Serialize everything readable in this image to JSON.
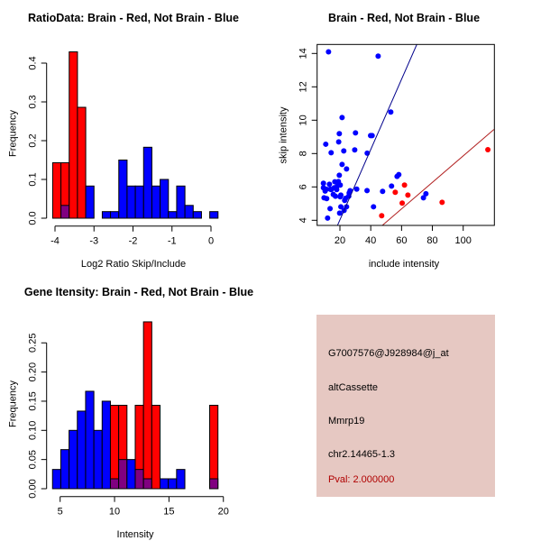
{
  "chart_data": [
    {
      "id": "ratio",
      "type": "bar",
      "title": "RatioData: Brain - Red, Not Brain - Blue",
      "xlabel": "Log2 Ratio Skip/Include",
      "ylabel": "Frequency",
      "xlim": [
        -4.1,
        0.3
      ],
      "ylim": [
        0,
        0.43
      ],
      "xticks": [
        -4,
        -3,
        -2,
        -1,
        0
      ],
      "xtick_labels": [
        "-4",
        "-3",
        "-2",
        "-1",
        "0"
      ],
      "yticks": [
        0,
        0.1,
        0.2,
        0.3,
        0.4
      ],
      "ytick_labels": [
        "0.0",
        "0.1",
        "0.2",
        "0.3",
        "0.4"
      ],
      "bin_start": -4.06,
      "bin_width": 0.212,
      "series": [
        {
          "name": "Not Brain",
          "color": "#0000ff",
          "values": [
            0,
            0.033,
            0,
            0,
            0.083,
            0,
            0.017,
            0.017,
            0.15,
            0.083,
            0.083,
            0.183,
            0.083,
            0.1,
            0.017,
            0.083,
            0.033,
            0.017,
            0,
            0.017
          ]
        },
        {
          "name": "Brain",
          "color": "#ff0000",
          "values": [
            0.143,
            0.143,
            0.429,
            0.286,
            0,
            0,
            0,
            0,
            0,
            0,
            0,
            0,
            0,
            0,
            0,
            0,
            0,
            0,
            0,
            0
          ]
        }
      ],
      "overlap_color": "#800080"
    },
    {
      "id": "scatter",
      "type": "scatter",
      "title": "Brain - Red, Not Brain - Blue",
      "xlabel": "include intensity",
      "ylabel": "skip intensity",
      "xlim": [
        5,
        120
      ],
      "ylim": [
        3.69,
        14.54
      ],
      "xticks": [
        20,
        40,
        60,
        80,
        100
      ],
      "xtick_labels": [
        "20",
        "40",
        "60",
        "80",
        "100"
      ],
      "yticks": [
        4,
        6,
        8,
        10,
        12,
        14
      ],
      "ytick_labels": [
        "4",
        "6",
        "8",
        "10",
        "12",
        "14"
      ],
      "series": [
        {
          "name": "Not Brain",
          "color": "#0000ff",
          "fit": {
            "slope": 0.2107,
            "intercept": -0.187,
            "color": "#00008b"
          },
          "points": [
            [
              12.6,
              14.1
            ],
            [
              44.8,
              13.84
            ],
            [
              53.0,
              10.49
            ],
            [
              21.4,
              10.16
            ],
            [
              19.6,
              9.19
            ],
            [
              30.1,
              9.24
            ],
            [
              39.9,
              9.08
            ],
            [
              40.9,
              9.08
            ],
            [
              10.8,
              8.56
            ],
            [
              19.2,
              8.7
            ],
            [
              14.3,
              8.05
            ],
            [
              22.5,
              8.16
            ],
            [
              29.6,
              8.22
            ],
            [
              37.7,
              8.02
            ],
            [
              21.4,
              7.35
            ],
            [
              24.3,
              7.08
            ],
            [
              19.6,
              6.7
            ],
            [
              57.1,
              6.63
            ],
            [
              58.2,
              6.74
            ],
            [
              9.3,
              6.22
            ],
            [
              13.2,
              6.16
            ],
            [
              16.7,
              6.31
            ],
            [
              19.0,
              6.32
            ],
            [
              20.2,
              6.11
            ],
            [
              9.3,
              5.95
            ],
            [
              11.2,
              5.86
            ],
            [
              13.8,
              5.86
            ],
            [
              16.3,
              5.95
            ],
            [
              18.2,
              6.04
            ],
            [
              53.5,
              6.05
            ],
            [
              10.4,
              5.75
            ],
            [
              14.3,
              5.84
            ],
            [
              17.9,
              5.84
            ],
            [
              26.6,
              5.77
            ],
            [
              30.9,
              5.87
            ],
            [
              37.6,
              5.78
            ],
            [
              47.7,
              5.73
            ],
            [
              9.7,
              5.35
            ],
            [
              11.4,
              5.3
            ],
            [
              15.7,
              5.55
            ],
            [
              17.1,
              5.44
            ],
            [
              20.6,
              5.51
            ],
            [
              20.2,
              5.41
            ],
            [
              26.0,
              5.64
            ],
            [
              23.7,
              5.32
            ],
            [
              23.1,
              5.19
            ],
            [
              25.7,
              5.44
            ],
            [
              75.8,
              5.59
            ],
            [
              74.2,
              5.35
            ],
            [
              13.6,
              4.7
            ],
            [
              20.6,
              4.81
            ],
            [
              24.3,
              4.81
            ],
            [
              41.8,
              4.81
            ],
            [
              22.7,
              4.59
            ],
            [
              19.8,
              4.43
            ],
            [
              12.0,
              4.13
            ]
          ]
        },
        {
          "name": "Brain",
          "color": "#ff0000",
          "fit": {
            "slope": 0.0794,
            "intercept": -0.08,
            "color": "#b22222"
          },
          "points": [
            [
              116.0,
              8.23
            ],
            [
              61.9,
              6.11
            ],
            [
              55.9,
              5.68
            ],
            [
              64.1,
              5.51
            ],
            [
              60.4,
              5.03
            ],
            [
              86.3,
              5.08
            ],
            [
              47.1,
              4.27
            ]
          ]
        }
      ]
    },
    {
      "id": "intensity",
      "type": "bar",
      "title": "Gene Itensity: Brain - Red, Not Brain - Blue",
      "xlabel": "Intensity",
      "ylabel": "Frequency",
      "xlim": [
        4,
        20.5
      ],
      "ylim": [
        0,
        0.29
      ],
      "xticks": [
        5,
        10,
        15,
        20
      ],
      "xtick_labels": [
        "5",
        "10",
        "15",
        "20"
      ],
      "yticks": [
        0,
        0.05,
        0.1,
        0.15,
        0.2,
        0.25
      ],
      "ytick_labels": [
        "0.00",
        "0.05",
        "0.10",
        "0.15",
        "0.20",
        "0.25"
      ],
      "bin_start": 4.3,
      "bin_width": 0.76,
      "series": [
        {
          "name": "Not Brain",
          "color": "#0000ff",
          "values": [
            0.033,
            0.067,
            0.1,
            0.133,
            0.167,
            0.1,
            0.15,
            0.017,
            0.05,
            0.05,
            0.033,
            0.017,
            0,
            0.017,
            0.017,
            0.033,
            0,
            0,
            0,
            0.017
          ]
        },
        {
          "name": "Brain",
          "color": "#ff0000",
          "values": [
            0,
            0,
            0,
            0,
            0,
            0,
            0,
            0.143,
            0.143,
            0,
            0.143,
            0.286,
            0.143,
            0,
            0,
            0,
            0,
            0,
            0,
            0.143
          ]
        }
      ],
      "overlap_color": "#800080"
    }
  ],
  "info": {
    "probe": "G7007576@J928984@j_at",
    "event_type": "altCassette",
    "gene": "Mmrp19",
    "location": "chr2.14465-1.3",
    "pval": "Pval: 2.000000",
    "background_color": "#e6c8c2",
    "pval_color": "#b00000"
  }
}
